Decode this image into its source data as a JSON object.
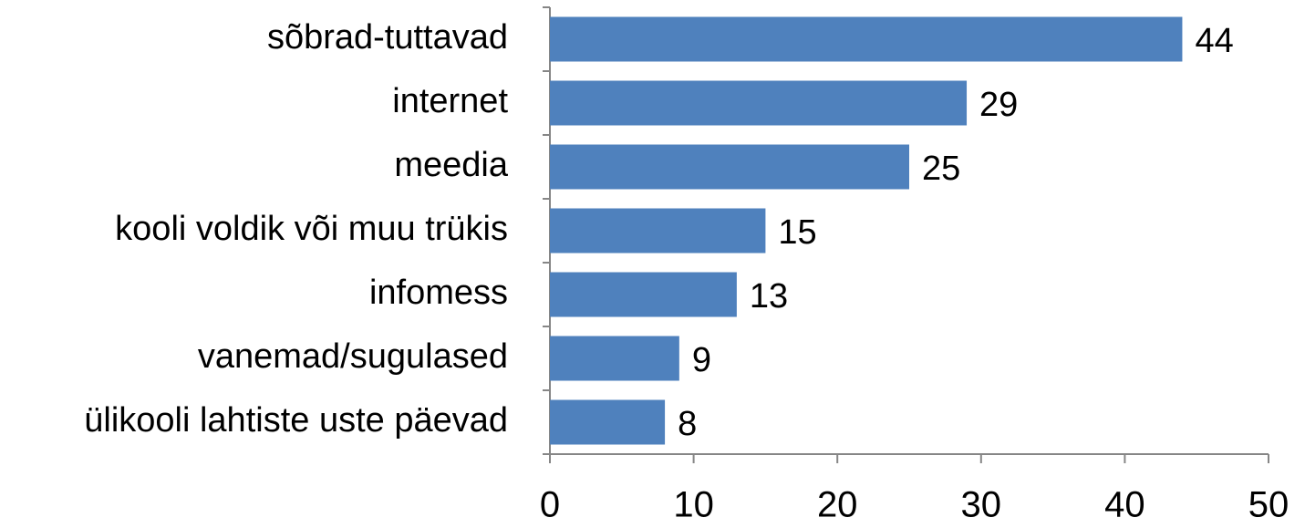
{
  "chart_data": {
    "type": "bar",
    "orientation": "horizontal",
    "categories": [
      "sõbrad-tuttavad",
      "internet",
      "meedia",
      "kooli voldik või muu trükis",
      "infomess",
      "vanemad/sugulased",
      "ülikooli lahtiste uste päevad"
    ],
    "values": [
      44,
      29,
      25,
      15,
      13,
      9,
      8
    ],
    "color": "#4f81bd",
    "xlim": [
      0,
      50
    ],
    "xticks": [
      0,
      10,
      20,
      30,
      40,
      50
    ],
    "grid": false
  }
}
